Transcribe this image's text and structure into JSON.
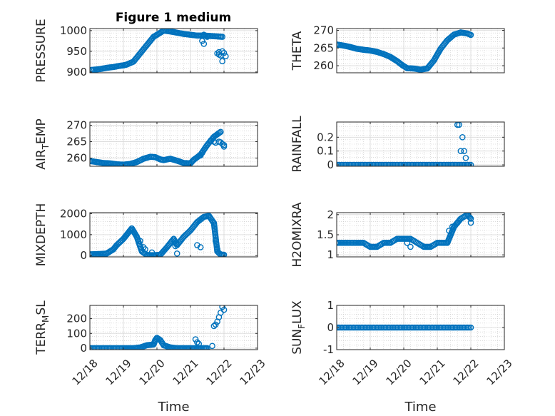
{
  "figure": {
    "title": "Figure 1 medium",
    "marker_color": "#0072bd",
    "axis_color": "#262626",
    "grid_color": "#c8c8c8"
  },
  "chart_data": [
    {
      "type": "scatter",
      "id": "pressure",
      "ylabel": "PRESSURE",
      "ylabel_main": "PRESSURE",
      "ylabel_sub": "",
      "ylabel_rest": "",
      "ylim": [
        898,
        1005
      ],
      "yticks": [
        900,
        950,
        1000
      ],
      "ytick_labels": [
        "900",
        "950",
        "1000"
      ],
      "xlim": [
        0,
        5
      ],
      "show_xticklabels": false,
      "title": "Figure 1 medium",
      "series": [
        {
          "name": "main",
          "x": [
            0.05,
            0.3,
            0.5,
            0.7,
            0.9,
            1.0,
            1.1,
            1.3,
            1.5,
            1.7,
            1.9,
            2.0,
            2.1,
            2.2,
            2.4,
            2.6,
            2.8,
            3.0,
            3.2,
            3.4,
            3.6,
            3.8,
            3.95
          ],
          "y": [
            905,
            907,
            910,
            912,
            915,
            916,
            918,
            925,
            945,
            965,
            985,
            990,
            995,
            1000,
            998,
            995,
            992,
            990,
            988,
            988,
            987,
            986,
            985
          ]
        },
        {
          "name": "outliers",
          "x": [
            3.35,
            3.4,
            3.4,
            3.5,
            3.8,
            3.85,
            3.85,
            3.9,
            3.95,
            3.95,
            4.0,
            4.05
          ],
          "y": [
            975,
            968,
            990,
            985,
            945,
            948,
            942,
            940,
            926,
            950,
            946,
            938
          ]
        }
      ]
    },
    {
      "type": "scatter",
      "id": "theta",
      "ylabel": "THETA",
      "ylabel_main": "THETA",
      "ylabel_sub": "",
      "ylabel_rest": "",
      "ylim": [
        258,
        270.5
      ],
      "yticks": [
        260,
        265,
        270
      ],
      "ytick_labels": [
        "260",
        "265",
        "270"
      ],
      "xlim": [
        0,
        5
      ],
      "show_xticklabels": false,
      "series": [
        {
          "name": "main",
          "x": [
            0.0,
            0.2,
            0.4,
            0.6,
            0.8,
            1.0,
            1.2,
            1.4,
            1.6,
            1.8,
            1.95,
            2.1,
            2.3,
            2.5,
            2.7,
            2.9,
            3.1,
            3.3,
            3.5,
            3.7,
            3.9,
            4.0
          ],
          "y": [
            266,
            265.7,
            265.3,
            264.8,
            264.5,
            264.3,
            263.9,
            263.3,
            262.5,
            261.3,
            260.2,
            259.3,
            259.2,
            258.9,
            259.2,
            261.5,
            264.8,
            267.2,
            268.8,
            269.4,
            269.1,
            268.7
          ]
        },
        {
          "name": "outliers",
          "x": [],
          "y": []
        }
      ]
    },
    {
      "type": "scatter",
      "id": "air_temp",
      "ylabel": "AIR_TEMP",
      "ylabel_main": "AIR",
      "ylabel_sub": "T",
      "ylabel_rest": "EMP",
      "ylim": [
        257.5,
        271
      ],
      "yticks": [
        260,
        265,
        270
      ],
      "ytick_labels": [
        "260",
        "265",
        "270"
      ],
      "xlim": [
        0,
        5
      ],
      "show_xticklabels": false,
      "series": [
        {
          "name": "main",
          "x": [
            0.0,
            0.2,
            0.4,
            0.6,
            0.8,
            1.0,
            1.2,
            1.4,
            1.6,
            1.8,
            1.95,
            2.1,
            2.2,
            2.4,
            2.6,
            2.8,
            3.0,
            3.1,
            3.3,
            3.5,
            3.7,
            3.9
          ],
          "y": [
            259.1,
            258.8,
            258.5,
            258.4,
            258.1,
            258.0,
            258.2,
            258.8,
            259.8,
            260.4,
            260.3,
            259.6,
            259.4,
            259.8,
            259.2,
            258.5,
            258.4,
            259.5,
            261.0,
            264.0,
            266.5,
            268.0
          ]
        },
        {
          "name": "outliers",
          "x": [
            3.3,
            3.35,
            3.6,
            3.7,
            3.75,
            3.85,
            3.9,
            3.95,
            4.0,
            4.0
          ],
          "y": [
            260.8,
            261.6,
            265.3,
            265.0,
            264.7,
            265.0,
            264.8,
            264.3,
            264.0,
            263.5
          ]
        }
      ]
    },
    {
      "type": "scatter",
      "id": "rainfall",
      "ylabel": "RAINFALL",
      "ylabel_main": "RAINFALL",
      "ylabel_sub": "",
      "ylabel_rest": "",
      "ylim": [
        -0.01,
        0.31
      ],
      "yticks": [
        0,
        0.1,
        0.2
      ],
      "ytick_labels": [
        "0",
        "0.1",
        "0.2"
      ],
      "xlim": [
        0,
        5
      ],
      "show_xticklabels": false,
      "series": [
        {
          "name": "main",
          "x": [
            0.0,
            0.5,
            1.0,
            1.5,
            2.0,
            2.5,
            3.0,
            3.5,
            4.0
          ],
          "y": [
            0,
            0,
            0,
            0,
            0,
            0,
            0,
            0,
            0
          ]
        },
        {
          "name": "outliers",
          "x": [
            3.6,
            3.65,
            3.7,
            3.75,
            3.8,
            3.85,
            3.9
          ],
          "y": [
            0.29,
            0.29,
            0.1,
            0.2,
            0.1,
            0.05,
            0.0
          ]
        }
      ]
    },
    {
      "type": "scatter",
      "id": "mixdepth",
      "ylabel": "MIXDEPTH",
      "ylabel_main": "MIXDEPTH",
      "ylabel_sub": "",
      "ylabel_rest": "",
      "ylim": [
        -60,
        2050
      ],
      "yticks": [
        0,
        1000,
        2000
      ],
      "ytick_labels": [
        "0",
        "1000",
        "2000"
      ],
      "xlim": [
        0,
        5
      ],
      "show_xticklabels": false,
      "series": [
        {
          "name": "main",
          "x": [
            0.0,
            0.3,
            0.5,
            0.7,
            0.8,
            1.0,
            1.1,
            1.25,
            1.4,
            1.55,
            1.7,
            1.9,
            2.1,
            2.3,
            2.5,
            2.6,
            2.8,
            3.0,
            3.2,
            3.4,
            3.55,
            3.7,
            3.8,
            3.9,
            4.0
          ],
          "y": [
            60,
            80,
            100,
            300,
            500,
            800,
            1000,
            1300,
            900,
            200,
            30,
            20,
            40,
            400,
            800,
            500,
            900,
            1200,
            1600,
            1850,
            1900,
            1550,
            200,
            50,
            40
          ]
        },
        {
          "name": "outliers",
          "x": [
            1.5,
            1.6,
            1.65,
            1.85,
            2.55,
            2.6,
            3.2,
            3.3,
            3.75,
            3.8
          ],
          "y": [
            700,
            400,
            300,
            150,
            450,
            100,
            500,
            400,
            700,
            300
          ]
        }
      ]
    },
    {
      "type": "scatter",
      "id": "h2omixra",
      "ylabel": "H2OMIXRA",
      "ylabel_main": "H2OMIXRA",
      "ylabel_sub": "",
      "ylabel_rest": "",
      "ylim": [
        0.95,
        2.05
      ],
      "yticks": [
        1,
        1.5,
        2
      ],
      "ytick_labels": [
        "1",
        "1.5",
        "2"
      ],
      "xlim": [
        0,
        5
      ],
      "show_xticklabels": false,
      "series": [
        {
          "name": "main",
          "x": [
            0.0,
            0.3,
            0.6,
            0.8,
            1.0,
            1.2,
            1.4,
            1.6,
            1.8,
            2.0,
            2.2,
            2.4,
            2.6,
            2.8,
            3.0,
            3.15,
            3.3,
            3.5,
            3.7,
            3.9,
            4.0
          ],
          "y": [
            1.3,
            1.3,
            1.3,
            1.3,
            1.2,
            1.2,
            1.3,
            1.3,
            1.4,
            1.4,
            1.4,
            1.3,
            1.2,
            1.2,
            1.3,
            1.3,
            1.3,
            1.7,
            1.9,
            2.0,
            1.9
          ]
        },
        {
          "name": "outliers",
          "x": [
            2.1,
            2.2,
            3.35,
            3.45,
            3.6,
            4.0
          ],
          "y": [
            1.3,
            1.2,
            1.6,
            1.7,
            1.8,
            1.8
          ]
        }
      ]
    },
    {
      "type": "scatter",
      "id": "terr_msl",
      "ylabel": "TERR_MSL",
      "ylabel_main": "TERR",
      "ylabel_sub": "M",
      "ylabel_rest": "SL",
      "ylim": [
        -10,
        290
      ],
      "yticks": [
        0,
        100,
        200
      ],
      "ytick_labels": [
        "0",
        "100",
        "200"
      ],
      "xlim": [
        0,
        5
      ],
      "show_xticklabels": true,
      "xlabel": "Time",
      "xtick_labels": [
        "12/18",
        "12/19",
        "12/20",
        "12/21",
        "12/22",
        "12/23"
      ],
      "series": [
        {
          "name": "main",
          "x": [
            0.0,
            0.5,
            1.0,
            1.3,
            1.5,
            1.7,
            1.9,
            1.95,
            2.0,
            2.1,
            2.2,
            2.4,
            2.6,
            2.8,
            3.0,
            3.2,
            3.4,
            3.5
          ],
          "y": [
            0,
            0,
            0,
            0,
            5,
            20,
            25,
            55,
            70,
            55,
            20,
            5,
            0,
            0,
            0,
            0,
            0,
            0
          ]
        },
        {
          "name": "outliers",
          "x": [
            3.15,
            3.2,
            3.25,
            3.65,
            3.7,
            3.75,
            3.8,
            3.85,
            3.9,
            3.95,
            4.0
          ],
          "y": [
            60,
            40,
            30,
            15,
            150,
            160,
            180,
            210,
            240,
            280,
            260
          ]
        }
      ]
    },
    {
      "type": "scatter",
      "id": "sun_flux",
      "ylabel": "SUN_FLUX",
      "ylabel_main": "SUN",
      "ylabel_sub": "F",
      "ylabel_rest": "LUX",
      "ylim": [
        -1,
        1
      ],
      "yticks": [
        -1,
        0,
        1
      ],
      "ytick_labels": [
        "-1",
        "0",
        "1"
      ],
      "xlim": [
        0,
        5
      ],
      "show_xticklabels": true,
      "xlabel": "Time",
      "xtick_labels": [
        "12/18",
        "12/19",
        "12/20",
        "12/21",
        "12/22",
        "12/23"
      ],
      "series": [
        {
          "name": "main",
          "x": [
            0.0,
            0.5,
            1.0,
            1.5,
            2.0,
            2.5,
            3.0,
            3.5,
            4.0
          ],
          "y": [
            0,
            0,
            0,
            0,
            0,
            0,
            0,
            0,
            0
          ]
        },
        {
          "name": "outliers",
          "x": [],
          "y": []
        }
      ]
    }
  ]
}
